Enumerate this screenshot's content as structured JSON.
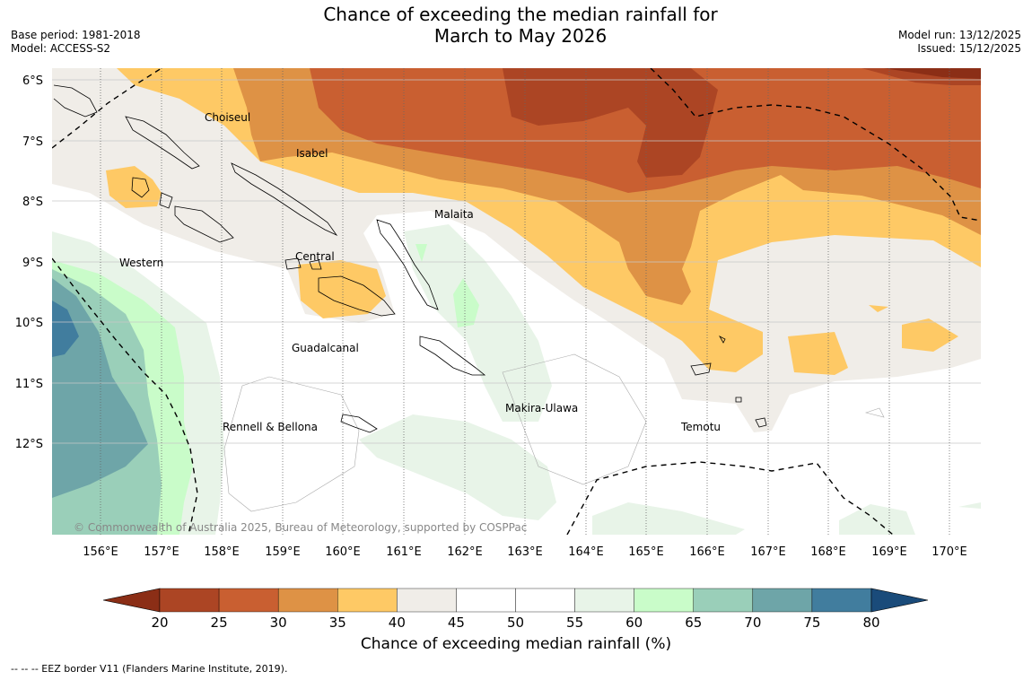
{
  "title": {
    "line1": "Chance of exceeding the median rainfall for",
    "line2": "March to May 2026"
  },
  "meta": {
    "base_period": "Base period: 1981-2018",
    "model": "Model: ACCESS-S2",
    "model_run": "Model run: 13/12/2025",
    "issued": "Issued: 15/12/2025"
  },
  "axes": {
    "lat_labels": [
      "6°S",
      "7°S",
      "8°S",
      "9°S",
      "10°S",
      "11°S",
      "12°S"
    ],
    "lon_labels": [
      "156°E",
      "157°E",
      "158°E",
      "159°E",
      "160°E",
      "161°E",
      "162°E",
      "163°E",
      "164°E",
      "165°E",
      "166°E",
      "167°E",
      "168°E",
      "169°E",
      "170°E"
    ]
  },
  "regions": {
    "choiseul": "Choiseul",
    "isabel": "Isabel",
    "malaita": "Malaita",
    "western": "Western",
    "central": "Central",
    "guadalcanal": "Guadalcanal",
    "makira": "Makira-Ulawa",
    "rennell": "Rennell & Bellona",
    "temotu": "Temotu"
  },
  "copyright": "© Commonwealth of Australia 2025, Bureau of Meteorology, supported by COSPPac",
  "colorbar": {
    "ticks": [
      "20",
      "25",
      "30",
      "35",
      "40",
      "45",
      "50",
      "55",
      "60",
      "65",
      "70",
      "75",
      "80"
    ],
    "colors": [
      "#8b2e16",
      "#ac4524",
      "#c95f31",
      "#de9245",
      "#fec965",
      "#f0ede8",
      "#ffffff",
      "#ffffff",
      "#e8f4e8",
      "#c9fcc9",
      "#9acfb9",
      "#6ea5a8",
      "#417d9e",
      "#1a4b7a"
    ],
    "label": "Chance of exceeding median rainfall (%)"
  },
  "footnote": "--  --  -- EEZ border V11 (Flanders Marine Institute, 2019)."
}
